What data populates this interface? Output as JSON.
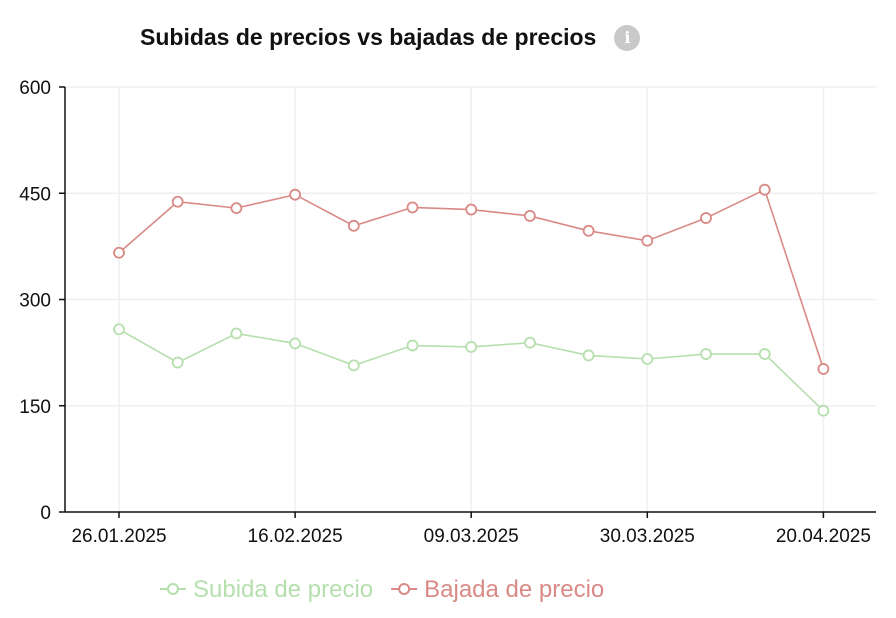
{
  "header": {
    "title": "Subidas de precios vs bajadas de precios",
    "info_icon": "info-icon"
  },
  "chart_data": {
    "type": "line",
    "title": "Subidas de precios vs bajadas de precios",
    "x": [
      "26.01.2025",
      "02.02.2025",
      "09.02.2025",
      "16.02.2025",
      "23.02.2025",
      "02.03.2025",
      "09.03.2025",
      "16.03.2025",
      "23.03.2025",
      "30.03.2025",
      "06.04.2025",
      "13.04.2025",
      "20.04.2025"
    ],
    "x_tick_labels": [
      "26.01.2025",
      "16.02.2025",
      "09.03.2025",
      "30.03.2025",
      "20.04.2025"
    ],
    "y_tick_labels": [
      "0",
      "150",
      "300",
      "450",
      "600"
    ],
    "ylim": [
      0,
      600
    ],
    "grid": true,
    "legend_position": "bottom",
    "series": [
      {
        "name": "Subida de precio",
        "color": "#b5dfad",
        "values": [
          258,
          211,
          252,
          238,
          207,
          235,
          233,
          239,
          221,
          216,
          223,
          223,
          143
        ]
      },
      {
        "name": "Bajada de precio",
        "color": "#d98a86",
        "values": [
          366,
          438,
          429,
          448,
          404,
          430,
          427,
          418,
          397,
          383,
          415,
          455,
          202
        ]
      }
    ]
  }
}
